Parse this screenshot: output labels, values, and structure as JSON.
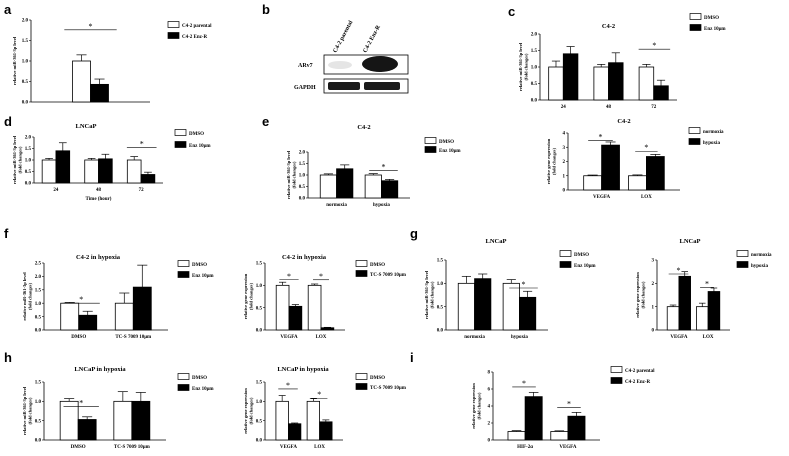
{
  "panel_labels": {
    "a": "a",
    "b": "b",
    "c": "c",
    "d": "d",
    "e": "e",
    "f": "f",
    "g": "g",
    "h": "h",
    "i": "i"
  },
  "blot": {
    "lanes": [
      "C4-2 parental",
      "C4-2 Enz-R"
    ],
    "rows": [
      "ARv7",
      "GAPDH"
    ]
  },
  "chart_data": [
    {
      "id": "a",
      "type": "bar",
      "title": "",
      "ylabel": "relative miR-361-3p level",
      "ylim": [
        0,
        2.0
      ],
      "yticks": [
        "0.0",
        "0.5",
        "1.0",
        "1.5",
        "2.0"
      ],
      "categories": [
        ""
      ],
      "series": [
        {
          "name": "C4-2 parental",
          "fill": "#ffffff",
          "values": [
            1.0
          ],
          "errors": [
            0.15
          ]
        },
        {
          "name": "C4-2 Enz-R",
          "fill": "#000000",
          "values": [
            0.43
          ],
          "errors": [
            0.13
          ]
        }
      ],
      "sig": [
        {
          "text": "*"
        }
      ]
    },
    {
      "id": "c",
      "type": "bar",
      "title": "C4-2",
      "ylabel": "relative miR-361-3p level\n(fold changes)",
      "ylim": [
        0,
        2.0
      ],
      "yticks": [
        "0.0",
        "0.5",
        "1.0",
        "1.5",
        "2.0"
      ],
      "categories": [
        "24",
        "48",
        "72"
      ],
      "series": [
        {
          "name": "DMSO",
          "fill": "#ffffff",
          "values": [
            1.0,
            1.0,
            1.0
          ],
          "errors": [
            0.18,
            0.08,
            0.08
          ]
        },
        {
          "name": "Enz 10μm",
          "fill": "#000000",
          "values": [
            1.4,
            1.13,
            0.43
          ],
          "errors": [
            0.22,
            0.3,
            0.17
          ]
        }
      ],
      "sig": [
        {
          "text": "*"
        }
      ]
    },
    {
      "id": "d",
      "type": "bar",
      "title": "LNCaP",
      "ylabel": "relative miR-361-3p level\n(fold changes)",
      "xlabel": "Time (hour)",
      "ylim": [
        0,
        2.0
      ],
      "yticks": [
        "0.0",
        "0.5",
        "1.0",
        "1.5",
        "2.0"
      ],
      "categories": [
        "24",
        "48",
        "72"
      ],
      "series": [
        {
          "name": "DMSO",
          "fill": "#ffffff",
          "values": [
            1.0,
            1.0,
            1.0
          ],
          "errors": [
            0.07,
            0.07,
            0.15
          ]
        },
        {
          "name": "Enz 10μm",
          "fill": "#000000",
          "values": [
            1.4,
            1.05,
            0.37
          ],
          "errors": [
            0.35,
            0.2,
            0.1
          ]
        }
      ],
      "sig": [
        {
          "text": "*"
        }
      ]
    },
    {
      "id": "e1",
      "type": "bar",
      "title": "C4-2",
      "ylabel": "relative miR-361-3p level\n(fold changes)",
      "ylim": [
        0,
        2.0
      ],
      "yticks": [
        "0.0",
        "0.5",
        "1.0",
        "1.5",
        "2.0"
      ],
      "categories": [
        "normoxia",
        "hypoxia"
      ],
      "series": [
        {
          "name": "DMSO",
          "fill": "#ffffff",
          "values": [
            1.0,
            1.0
          ],
          "errors": [
            0.05,
            0.06
          ]
        },
        {
          "name": "Enz 10μm",
          "fill": "#000000",
          "values": [
            1.27,
            0.75
          ],
          "errors": [
            0.17,
            0.06
          ]
        }
      ],
      "sig": [
        {
          "text": "*"
        }
      ]
    },
    {
      "id": "e2",
      "type": "bar",
      "title": "C4-2",
      "ylabel": "relative gene expression\n(fold changes)",
      "ylim": [
        0,
        4
      ],
      "yticks": [
        "0",
        "1",
        "2",
        "3",
        "4"
      ],
      "categories": [
        "VEGFA",
        "LOX"
      ],
      "series": [
        {
          "name": "normoxia",
          "fill": "#ffffff",
          "values": [
            1.0,
            1.0
          ],
          "errors": [
            0.05,
            0.06
          ]
        },
        {
          "name": "hypoxia",
          "fill": "#000000",
          "values": [
            3.15,
            2.35
          ],
          "errors": [
            0.22,
            0.15
          ]
        }
      ],
      "sig": [
        {
          "text": "*"
        },
        {
          "text": "*"
        }
      ]
    },
    {
      "id": "f1",
      "type": "bar",
      "title": "C4-2 in hypoxia",
      "ylabel": "relative miR-361-3p level\n(fold changes)",
      "ylim": [
        0,
        2.5
      ],
      "yticks": [
        "0.0",
        "0.5",
        "1.0",
        "1.5",
        "2.0",
        "2.5"
      ],
      "categories": [
        "DMSO",
        "TC-S 7009 10μm"
      ],
      "series": [
        {
          "name": "DMSO",
          "fill": "#ffffff",
          "values": [
            1.0,
            1.0
          ],
          "errors": [
            0.03,
            0.38
          ]
        },
        {
          "name": "Enz 10μm",
          "fill": "#000000",
          "values": [
            0.55,
            1.6
          ],
          "errors": [
            0.15,
            0.82
          ]
        }
      ],
      "sig": [
        {
          "text": "*"
        }
      ]
    },
    {
      "id": "f2",
      "type": "bar",
      "title": "C4-2 in hypoxia",
      "ylabel": "relative gene expression\n(fold changes)",
      "ylim": [
        0,
        1.5
      ],
      "yticks": [
        "0.0",
        "0.5",
        "1.0",
        "1.5"
      ],
      "categories": [
        "VEGFA",
        "LOX"
      ],
      "series": [
        {
          "name": "DMSO",
          "fill": "#ffffff",
          "values": [
            1.0,
            1.0
          ],
          "errors": [
            0.07,
            0.03
          ]
        },
        {
          "name": "TC-S 7009 10μm",
          "fill": "#000000",
          "values": [
            0.53,
            0.05
          ],
          "errors": [
            0.04,
            0.01
          ]
        }
      ],
      "sig": [
        {
          "text": "*"
        },
        {
          "text": "*"
        }
      ]
    },
    {
      "id": "g1",
      "type": "bar",
      "title": "LNCaP",
      "ylabel": "relative miR-361-3p level\n(fold changes)",
      "ylim": [
        0,
        1.5
      ],
      "yticks": [
        "0.0",
        "0.5",
        "1.0",
        "1.5"
      ],
      "categories": [
        "normoxia",
        "hypoxia"
      ],
      "series": [
        {
          "name": "DMSO",
          "fill": "#ffffff",
          "values": [
            1.0,
            1.0
          ],
          "errors": [
            0.15,
            0.08
          ]
        },
        {
          "name": "Enz 10μm",
          "fill": "#000000",
          "values": [
            1.1,
            0.7
          ],
          "errors": [
            0.1,
            0.13
          ]
        }
      ],
      "sig": [
        {
          "text": "*"
        }
      ]
    },
    {
      "id": "g2",
      "type": "bar",
      "title": "LNCaP",
      "ylabel": "relative gene expression\n(fold changes)",
      "ylim": [
        0,
        3
      ],
      "yticks": [
        "0",
        "1",
        "2",
        "3"
      ],
      "categories": [
        "VEGFA",
        "LOX"
      ],
      "series": [
        {
          "name": "normoxia",
          "fill": "#ffffff",
          "values": [
            1.0,
            1.0
          ],
          "errors": [
            0.07,
            0.15
          ]
        },
        {
          "name": "hypoxia",
          "fill": "#000000",
          "values": [
            2.3,
            1.65
          ],
          "errors": [
            0.2,
            0.15
          ]
        }
      ],
      "sig": [
        {
          "text": "*"
        },
        {
          "text": "*"
        }
      ]
    },
    {
      "id": "h1",
      "type": "bar",
      "title": "LNCaP in hypoxia",
      "ylabel": "relative miR-361-3p level\n(fold changes)",
      "ylim": [
        0,
        1.5
      ],
      "yticks": [
        "0.0",
        "0.5",
        "1.0",
        "1.5"
      ],
      "categories": [
        "DMSO",
        "TC-S 7009 10μm"
      ],
      "series": [
        {
          "name": "DMSO",
          "fill": "#ffffff",
          "values": [
            1.0,
            1.0
          ],
          "errors": [
            0.07,
            0.25
          ]
        },
        {
          "name": "Enz 10μm",
          "fill": "#000000",
          "values": [
            0.53,
            1.0
          ],
          "errors": [
            0.07,
            0.23
          ]
        }
      ],
      "sig": [
        {
          "text": "*"
        }
      ]
    },
    {
      "id": "h2",
      "type": "bar",
      "title": "LNCaP in hypoxia",
      "ylabel": "relative gene expression\n(fold changes)",
      "ylim": [
        0,
        1.5
      ],
      "yticks": [
        "0.0",
        "0.5",
        "1.0",
        "1.5"
      ],
      "categories": [
        "VEGFA",
        "LOX"
      ],
      "series": [
        {
          "name": "DMSO",
          "fill": "#ffffff",
          "values": [
            1.0,
            1.0
          ],
          "errors": [
            0.15,
            0.07
          ]
        },
        {
          "name": "TC-S 7009 10μm",
          "fill": "#000000",
          "values": [
            0.42,
            0.47
          ],
          "errors": [
            0.02,
            0.05
          ]
        }
      ],
      "sig": [
        {
          "text": "*"
        },
        {
          "text": "*"
        }
      ]
    },
    {
      "id": "i",
      "type": "bar",
      "title": "",
      "ylabel": "relative gene expression\n(fold changes)",
      "ylim": [
        0,
        8
      ],
      "yticks": [
        "0",
        "2",
        "4",
        "6",
        "8"
      ],
      "categories": [
        "HIF-2α",
        "VEGFA"
      ],
      "series": [
        {
          "name": "C4-2 parental",
          "fill": "#ffffff",
          "values": [
            1.0,
            1.0
          ],
          "errors": [
            0.1,
            0.08
          ]
        },
        {
          "name": "C4-2 Enz-R",
          "fill": "#000000",
          "values": [
            5.1,
            2.8
          ],
          "errors": [
            0.5,
            0.45
          ]
        }
      ],
      "sig": [
        {
          "text": "*"
        },
        {
          "text": "*"
        }
      ]
    }
  ]
}
